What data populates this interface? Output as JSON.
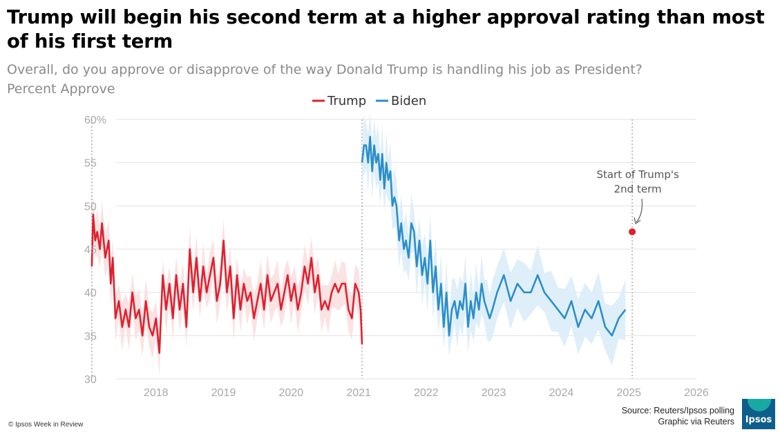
{
  "title": "Trump will begin his second term at a higher approval rating than most of his first term",
  "subtitle": "Overall, do you approve or disapprove of the way Donald Trump is handling his job as President?",
  "y_caption": "Percent Approve",
  "source_line1": "Source: Reuters/Ipsos polling",
  "source_line2": "Graphic via Reuters",
  "copyright": "© Ipsos Week in Review",
  "logo_text": "Ipsos",
  "colors": {
    "trump": "#e0202e",
    "biden": "#2b8ec9",
    "trump_band": "#fbdfe0",
    "biden_band": "#dcedf9",
    "grid": "#e2e2e2",
    "vline": "#b0b0b0"
  },
  "chart_data": {
    "type": "line",
    "title": "Trump will begin his second term at a higher approval rating than most of his first term",
    "ylabel": "Percent Approve",
    "ylim": [
      30,
      60
    ],
    "xlim": [
      2017.0,
      2026.0
    ],
    "y_ticks": [
      {
        "value": 60,
        "label": "60%"
      },
      {
        "value": 55,
        "label": "55"
      },
      {
        "value": 50,
        "label": "50"
      },
      {
        "value": 45,
        "label": "45"
      },
      {
        "value": 40,
        "label": "40"
      },
      {
        "value": 35,
        "label": "35"
      },
      {
        "value": 30,
        "label": "30"
      }
    ],
    "x_ticks": [
      {
        "value": 2018,
        "label": "2018"
      },
      {
        "value": 2019,
        "label": "2019"
      },
      {
        "value": 2020,
        "label": "2020"
      },
      {
        "value": 2021,
        "label": "2021"
      },
      {
        "value": 2022,
        "label": "2022"
      },
      {
        "value": 2023,
        "label": "2023"
      },
      {
        "value": 2024,
        "label": "2024"
      },
      {
        "value": 2025,
        "label": "2025"
      },
      {
        "value": 2026,
        "label": "2026"
      }
    ],
    "reference_lines": [
      2017.05,
      2021.05,
      2025.05
    ],
    "legend": [
      "Trump",
      "Biden"
    ],
    "series": [
      {
        "name": "Trump",
        "x": [
          2017.05,
          2017.07,
          2017.1,
          2017.13,
          2017.17,
          2017.2,
          2017.25,
          2017.3,
          2017.33,
          2017.36,
          2017.4,
          2017.45,
          2017.5,
          2017.55,
          2017.6,
          2017.65,
          2017.7,
          2017.75,
          2017.8,
          2017.85,
          2017.9,
          2017.95,
          2018.0,
          2018.05,
          2018.1,
          2018.15,
          2018.2,
          2018.25,
          2018.3,
          2018.35,
          2018.4,
          2018.45,
          2018.5,
          2018.55,
          2018.6,
          2018.65,
          2018.7,
          2018.75,
          2018.8,
          2018.85,
          2018.9,
          2018.95,
          2019.0,
          2019.05,
          2019.1,
          2019.15,
          2019.2,
          2019.25,
          2019.3,
          2019.35,
          2019.4,
          2019.45,
          2019.5,
          2019.55,
          2019.6,
          2019.65,
          2019.7,
          2019.75,
          2019.8,
          2019.85,
          2019.9,
          2019.95,
          2020.0,
          2020.05,
          2020.1,
          2020.15,
          2020.2,
          2020.25,
          2020.3,
          2020.35,
          2020.4,
          2020.45,
          2020.5,
          2020.55,
          2020.6,
          2020.65,
          2020.7,
          2020.75,
          2020.8,
          2020.85,
          2020.9,
          2020.95,
          2021.0,
          2021.03,
          2021.05
        ],
        "values": [
          43,
          49,
          46,
          47,
          45,
          48,
          44,
          46,
          41,
          44,
          37,
          39,
          36,
          38,
          36,
          40,
          37,
          38,
          35,
          39,
          36,
          35,
          37,
          33,
          42,
          38,
          41,
          37,
          42,
          38,
          41,
          36,
          45,
          40,
          44,
          39,
          43,
          40,
          42,
          44,
          39,
          41,
          46,
          40,
          43,
          37,
          42,
          38,
          41,
          39,
          40,
          37,
          39,
          41,
          38,
          42,
          39,
          40,
          41,
          38,
          40,
          42,
          39,
          41,
          38,
          40,
          43,
          41,
          44,
          40,
          42,
          38,
          39,
          38,
          40,
          41,
          40,
          41,
          41,
          38,
          37,
          41,
          40,
          38,
          34
        ]
      },
      {
        "name": "Biden",
        "x": [
          2021.05,
          2021.08,
          2021.11,
          2021.14,
          2021.17,
          2021.2,
          2021.23,
          2021.26,
          2021.29,
          2021.32,
          2021.35,
          2021.38,
          2021.41,
          2021.44,
          2021.47,
          2021.5,
          2021.53,
          2021.56,
          2021.6,
          2021.63,
          2021.67,
          2021.7,
          2021.74,
          2021.78,
          2021.82,
          2021.86,
          2021.9,
          2021.94,
          2021.98,
          2022.02,
          2022.06,
          2022.1,
          2022.14,
          2022.18,
          2022.22,
          2022.26,
          2022.3,
          2022.34,
          2022.38,
          2022.42,
          2022.46,
          2022.5,
          2022.54,
          2022.58,
          2022.62,
          2022.66,
          2022.7,
          2022.74,
          2022.78,
          2022.82,
          2022.86,
          2022.9,
          2022.94,
          2022.98,
          2023.05,
          2023.15,
          2023.25,
          2023.35,
          2023.45,
          2023.55,
          2023.65,
          2023.75,
          2023.85,
          2023.95,
          2024.05,
          2024.15,
          2024.25,
          2024.35,
          2024.45,
          2024.55,
          2024.65,
          2024.75,
          2024.85,
          2024.95
        ],
        "values": [
          55,
          57,
          57,
          55,
          58,
          54,
          57,
          55,
          56,
          53,
          56,
          52,
          55,
          53,
          54,
          50,
          51,
          50,
          46,
          48,
          45,
          46,
          44,
          48,
          47,
          43,
          46,
          42,
          44,
          41,
          46,
          40,
          43,
          38,
          41,
          36,
          40,
          35,
          38,
          39,
          37,
          39,
          38,
          41,
          36,
          39,
          37,
          40,
          38,
          41,
          39,
          38,
          37,
          38,
          40,
          42,
          39,
          41,
          40,
          40,
          42,
          40,
          39,
          38,
          37,
          39,
          36,
          38,
          37,
          39,
          36,
          35,
          37,
          38
        ]
      }
    ],
    "points": [
      {
        "series": "Trump",
        "x": 2025.05,
        "y": 47
      }
    ],
    "annotations": [
      {
        "text_lines": [
          "Start of Trump's",
          "2nd term"
        ],
        "x": 2025.05,
        "y": 47
      }
    ]
  }
}
